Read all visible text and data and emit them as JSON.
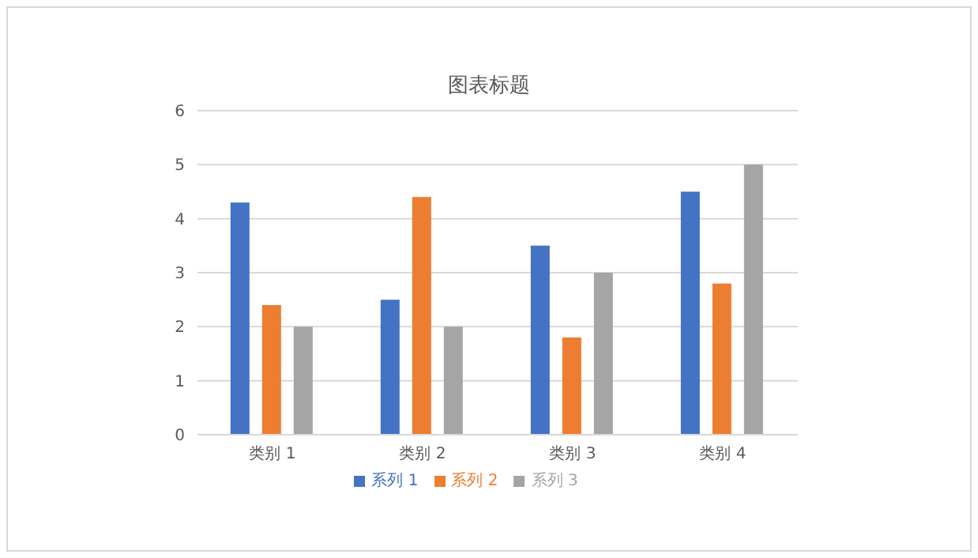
{
  "chart_data": {
    "type": "bar",
    "title": "图表标题",
    "categories": [
      "类别 1",
      "类别 2",
      "类别 3",
      "类别 4"
    ],
    "series": [
      {
        "name": "系列 1",
        "color": "#4472c4",
        "values": [
          4.3,
          2.5,
          3.5,
          4.5
        ]
      },
      {
        "name": "系列 2",
        "color": "#ed7d31",
        "values": [
          2.4,
          4.4,
          1.8,
          2.8
        ]
      },
      {
        "name": "系列 3",
        "color": "#a5a5a5",
        "values": [
          2,
          2,
          3,
          5
        ]
      }
    ],
    "ylim": [
      0,
      6
    ],
    "yticks": [
      0,
      1,
      2,
      3,
      4,
      5,
      6
    ],
    "grid": "y",
    "legend": "bottom"
  }
}
